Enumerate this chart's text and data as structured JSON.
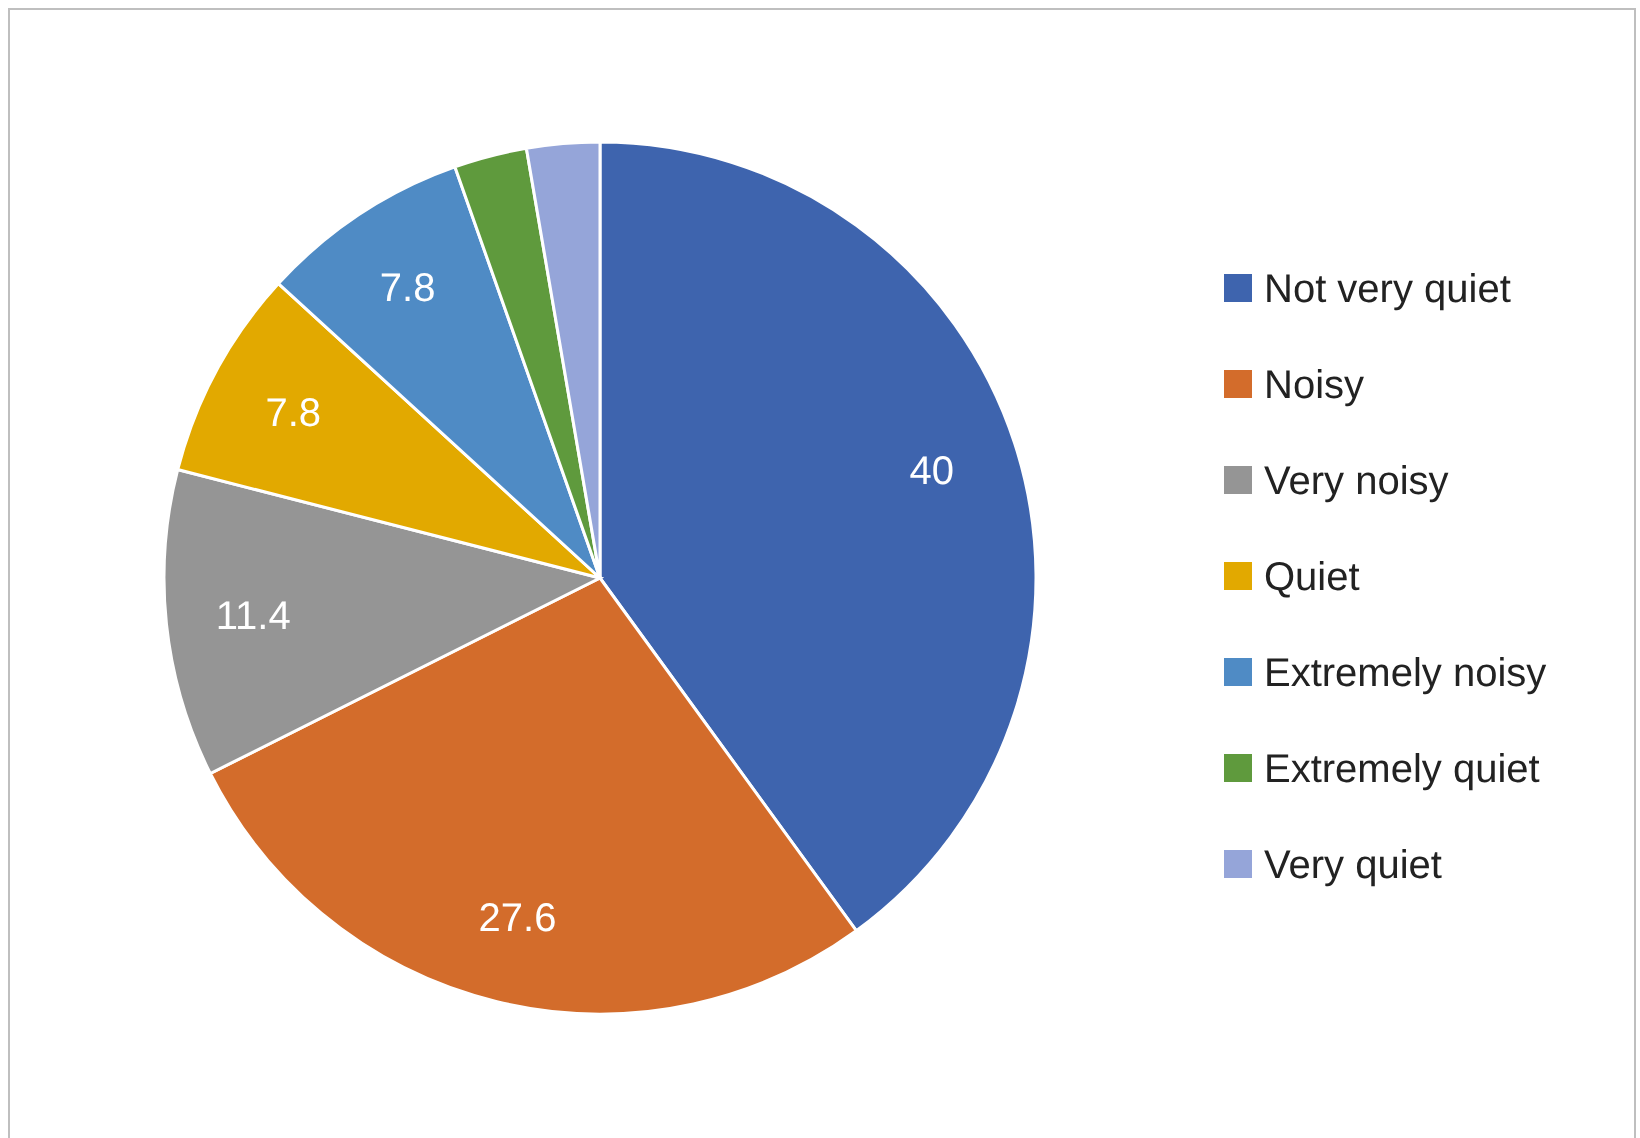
{
  "chart_data": {
    "type": "pie",
    "categories": [
      "Not very quiet",
      "Noisy",
      "Very noisy",
      "Quiet",
      "Extremely noisy",
      "Extremely quiet",
      "Very quiet"
    ],
    "values": [
      40,
      27.6,
      11.4,
      7.8,
      7.8,
      2.7,
      2.7
    ],
    "value_labels": [
      "40",
      "27.6",
      "11.4",
      "7.8",
      "7.8",
      null,
      null
    ],
    "colors": [
      "#3e64ae",
      "#d36c2b",
      "#959595",
      "#e2a900",
      "#4f8bc5",
      "#5f9a3d",
      "#95a5d9"
    ],
    "legend": "right"
  }
}
